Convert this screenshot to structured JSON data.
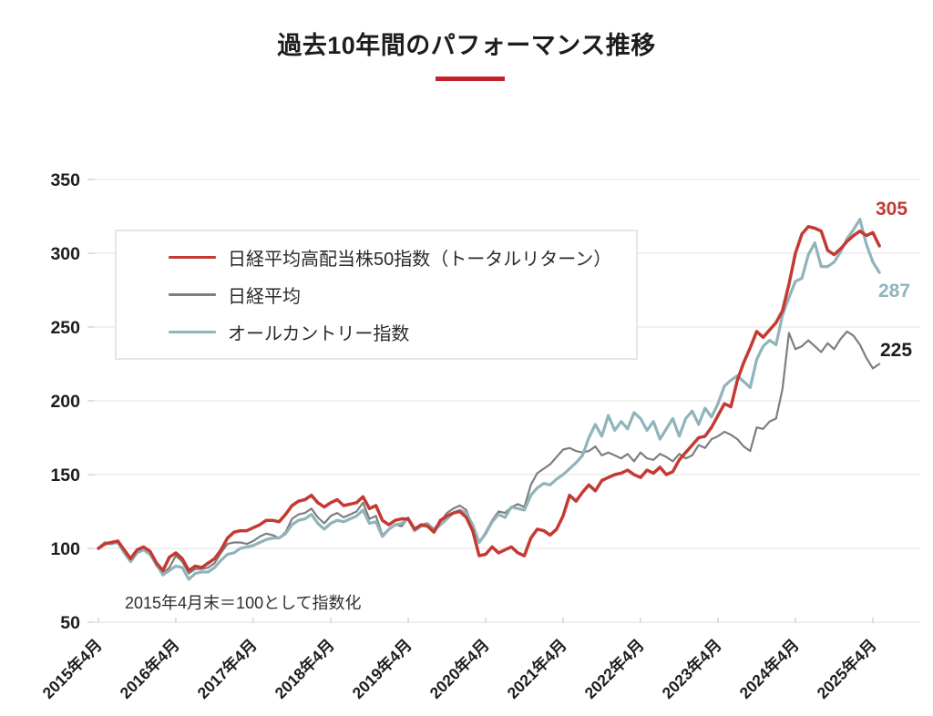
{
  "chart_data": {
    "type": "line",
    "title": "過去10年間のパフォーマンス推移",
    "note": "2015年4月末＝100として指数化",
    "x_unit": "month",
    "x_range": [
      "2015年4月",
      "2025年5月"
    ],
    "x_tick_labels": [
      "2015年4月",
      "2016年4月",
      "2017年4月",
      "2018年4月",
      "2019年4月",
      "2020年4月",
      "2021年4月",
      "2022年4月",
      "2023年4月",
      "2024年4月",
      "2025年4月"
    ],
    "y_tick_labels": [
      "350",
      "300",
      "250",
      "200",
      "150",
      "100",
      "50"
    ],
    "y_ticks": [
      350,
      300,
      250,
      200,
      150,
      100,
      50
    ],
    "ylim": [
      50,
      350
    ],
    "grid": "horizontal",
    "legend_position": "upper-left-box",
    "series": [
      {
        "name": "日経平均高配当株50指数（トータルリターン）",
        "color": "#c43a33",
        "width": 3.5,
        "values": [
          100,
          103,
          104,
          105,
          99,
          93,
          99,
          101,
          98,
          90,
          85,
          94,
          97,
          93,
          85,
          88,
          87,
          90,
          93,
          99,
          107,
          111,
          112,
          112,
          114,
          116,
          119,
          119,
          118,
          123,
          129,
          132,
          133,
          136,
          131,
          128,
          131,
          133,
          129,
          130,
          131,
          135,
          127,
          129,
          119,
          116,
          119,
          120,
          120,
          113,
          116,
          115,
          111,
          119,
          122,
          124,
          125,
          121,
          112,
          95,
          96,
          101,
          97,
          99,
          101,
          97,
          95,
          107,
          113,
          112,
          109,
          113,
          122,
          136,
          132,
          138,
          143,
          139,
          146,
          148,
          150,
          151,
          153,
          150,
          148,
          153,
          151,
          155,
          150,
          152,
          160,
          165,
          170,
          175,
          176,
          182,
          190,
          198,
          196,
          214,
          226,
          236,
          247,
          243,
          248,
          253,
          261,
          279,
          300,
          313,
          318,
          317,
          315,
          302,
          299,
          303,
          308,
          312,
          315,
          312,
          314,
          305
        ]
      },
      {
        "name": "日経平均",
        "color": "#7e7e7e",
        "width": 2.2,
        "values": [
          100,
          103,
          104,
          104,
          98,
          92,
          98,
          100,
          96,
          88,
          83,
          87,
          95,
          91,
          83,
          86,
          86,
          87,
          90,
          97,
          103,
          104,
          104,
          103,
          105,
          108,
          110,
          109,
          107,
          111,
          120,
          123,
          124,
          127,
          121,
          117,
          122,
          124,
          121,
          123,
          125,
          131,
          120,
          122,
          109,
          113,
          116,
          115,
          121,
          112,
          116,
          117,
          113,
          118,
          124,
          127,
          129,
          126,
          115,
          104,
          111,
          119,
          125,
          124,
          128,
          130,
          128,
          143,
          151,
          154,
          157,
          162,
          167,
          168,
          166,
          165,
          166,
          169,
          163,
          165,
          163,
          161,
          164,
          159,
          165,
          161,
          160,
          164,
          162,
          159,
          164,
          161,
          163,
          170,
          168,
          174,
          176,
          179,
          177,
          174,
          169,
          166,
          182,
          181,
          186,
          188,
          208,
          246,
          235,
          237,
          241,
          237,
          233,
          239,
          235,
          242,
          247,
          244,
          238,
          229,
          222,
          225
        ]
      },
      {
        "name": "オールカントリー指数",
        "color": "#8fb4ba",
        "width": 3.2,
        "values": [
          100,
          104,
          103,
          104,
          97,
          91,
          97,
          99,
          96,
          89,
          82,
          85,
          88,
          87,
          79,
          83,
          84,
          84,
          87,
          92,
          96,
          97,
          100,
          101,
          102,
          104,
          106,
          107,
          107,
          110,
          116,
          119,
          120,
          123,
          117,
          113,
          117,
          119,
          118,
          120,
          122,
          126,
          117,
          118,
          108,
          113,
          116,
          117,
          120,
          112,
          115,
          116,
          112,
          116,
          120,
          124,
          126,
          124,
          116,
          104,
          110,
          118,
          123,
          121,
          128,
          127,
          126,
          136,
          141,
          144,
          143,
          147,
          150,
          154,
          158,
          163,
          175,
          184,
          176,
          190,
          180,
          186,
          181,
          192,
          188,
          180,
          186,
          174,
          181,
          188,
          176,
          188,
          193,
          184,
          195,
          189,
          198,
          210,
          214,
          217,
          213,
          209,
          228,
          237,
          241,
          238,
          258,
          270,
          281,
          283,
          299,
          307,
          291,
          291,
          294,
          301,
          310,
          316,
          323,
          306,
          294,
          287
        ]
      }
    ],
    "end_value_labels": [
      {
        "text": "305",
        "color": "#c23b33"
      },
      {
        "text": "287",
        "color": "#8fb4ba"
      },
      {
        "text": "225",
        "color": "#1c1c1c"
      }
    ],
    "accent_color": "#c2222c"
  }
}
